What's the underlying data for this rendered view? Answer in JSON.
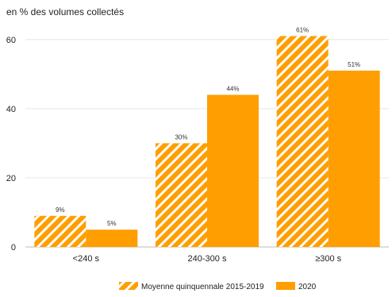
{
  "chart_data": {
    "type": "bar",
    "title": "",
    "ylabel": "en % des volumes collectés",
    "xlabel": "",
    "categories": [
      "<240 s",
      "240-300 s",
      "≥300 s"
    ],
    "series": [
      {
        "name": "Moyenne quinquennale 2015-2019",
        "values": [
          9,
          30,
          61
        ],
        "labels": [
          "9%",
          "30%",
          "61%"
        ],
        "pattern": "hatched",
        "color": "#FF9E00"
      },
      {
        "name": "2020",
        "values": [
          5,
          44,
          51
        ],
        "labels": [
          "5%",
          "44%",
          "51%"
        ],
        "pattern": "solid",
        "color": "#FF9E00"
      }
    ],
    "ylim": [
      0,
      65
    ],
    "yticks": [
      0,
      20,
      40,
      60
    ],
    "grid": true,
    "legend": "bottom"
  }
}
